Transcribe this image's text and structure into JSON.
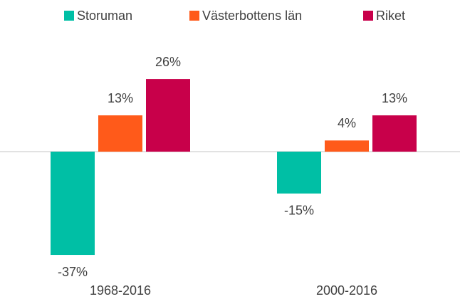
{
  "chart_data": {
    "type": "bar",
    "categories": [
      "1968-2016",
      "2000-2016"
    ],
    "series": [
      {
        "name": "Storuman",
        "color": "#00bfa5",
        "values": [
          -37,
          -15
        ],
        "value_labels": [
          "-37%",
          "-15%"
        ]
      },
      {
        "name": "Västerbottens län",
        "color": "#ff5a1a",
        "values": [
          13,
          4
        ],
        "value_labels": [
          "13%",
          "4%"
        ]
      },
      {
        "name": "Riket",
        "color": "#c8004a",
        "values": [
          26,
          13
        ],
        "value_labels": [
          "26%",
          "13%"
        ]
      }
    ],
    "legend": "top"
  }
}
